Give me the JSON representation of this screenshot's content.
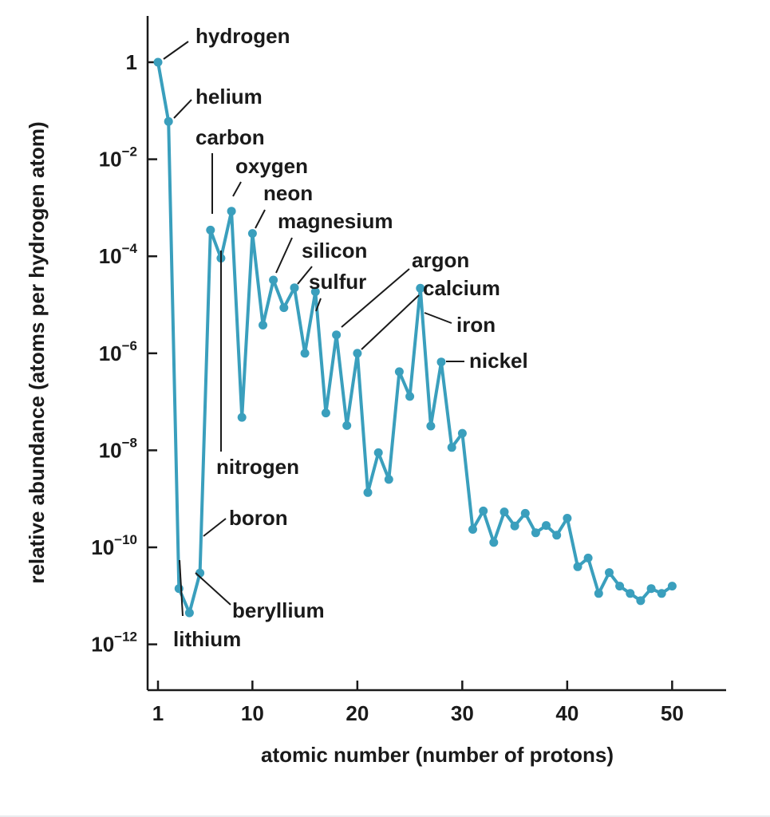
{
  "chart_data": {
    "type": "line",
    "title": "",
    "xlabel": "atomic number (number of protons)",
    "ylabel": "relative abundance (atoms per hydrogen atom)",
    "xlim": [
      0,
      55
    ],
    "ylim": [
      -13,
      1
    ],
    "y_scale": "log10",
    "grid": false,
    "legend": "none",
    "colors": {
      "series": "#3a9fbd",
      "axes": "#1a1a1a"
    },
    "x_ticks": [
      {
        "value": 1,
        "label": "1"
      },
      {
        "value": 10,
        "label": "10"
      },
      {
        "value": 20,
        "label": "20"
      },
      {
        "value": 30,
        "label": "30"
      },
      {
        "value": 40,
        "label": "40"
      },
      {
        "value": 50,
        "label": "50"
      }
    ],
    "y_ticks": [
      {
        "value": 0,
        "base": "1",
        "exp": ""
      },
      {
        "value": -2,
        "base": "10",
        "exp": "−2"
      },
      {
        "value": -4,
        "base": "10",
        "exp": "−4"
      },
      {
        "value": -6,
        "base": "10",
        "exp": "−6"
      },
      {
        "value": -8,
        "base": "10",
        "exp": "−8"
      },
      {
        "value": -10,
        "base": "10",
        "exp": "−10"
      },
      {
        "value": -12,
        "base": "10",
        "exp": "−12"
      }
    ],
    "series": [
      {
        "x": [
          1,
          2,
          3,
          4,
          5,
          6,
          7,
          8,
          9,
          10,
          11,
          12,
          13,
          14,
          15,
          16,
          17,
          18,
          19,
          20,
          21,
          22,
          23,
          24,
          25,
          26,
          27,
          28,
          29,
          30,
          31,
          32,
          33,
          34,
          35,
          36,
          37,
          38,
          39,
          40,
          41,
          42,
          43,
          44,
          45,
          46,
          47,
          48,
          49,
          50
        ],
        "log10_y": [
          0,
          -1.22,
          -10.85,
          -11.35,
          -10.53,
          -3.46,
          -4.04,
          -3.07,
          -7.32,
          -3.53,
          -5.42,
          -4.49,
          -5.06,
          -4.65,
          -6.0,
          -4.73,
          -7.23,
          -5.62,
          -7.49,
          -6.0,
          -8.87,
          -8.05,
          -8.6,
          -6.38,
          -6.89,
          -4.66,
          -7.5,
          -6.18,
          -7.94,
          -7.65,
          -9.63,
          -9.25,
          -9.9,
          -9.27,
          -9.56,
          -9.3,
          -9.7,
          -9.55,
          -9.75,
          -9.4,
          -10.4,
          -10.22,
          -10.95,
          -10.52,
          -10.8,
          -10.95,
          -11.1,
          -10.85,
          -10.95,
          -10.8
        ]
      }
    ],
    "annotations": [
      {
        "label": "hydrogen",
        "x": 1
      },
      {
        "label": "helium",
        "x": 2
      },
      {
        "label": "carbon",
        "x": 6
      },
      {
        "label": "oxygen",
        "x": 8
      },
      {
        "label": "neon",
        "x": 10
      },
      {
        "label": "magnesium",
        "x": 12
      },
      {
        "label": "silicon",
        "x": 14
      },
      {
        "label": "sulfur",
        "x": 16
      },
      {
        "label": "argon",
        "x": 18
      },
      {
        "label": "calcium",
        "x": 20
      },
      {
        "label": "iron",
        "x": 26
      },
      {
        "label": "nickel",
        "x": 28
      },
      {
        "label": "nitrogen",
        "x": 7
      },
      {
        "label": "boron",
        "x": 5
      },
      {
        "label": "beryllium",
        "x": 4
      },
      {
        "label": "lithium",
        "x": 3
      }
    ]
  }
}
